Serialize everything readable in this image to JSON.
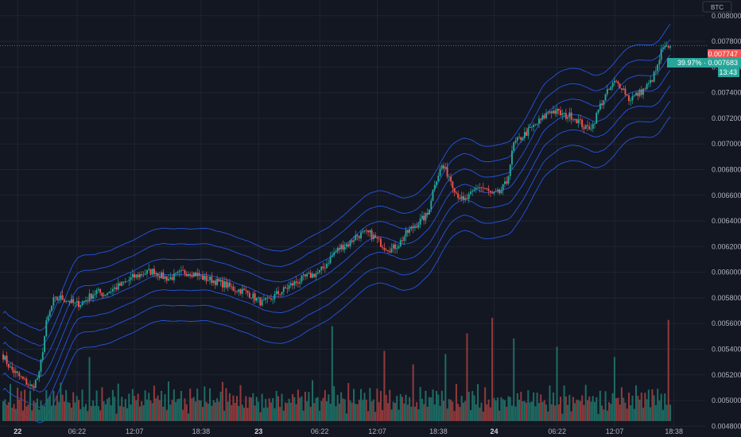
{
  "currency_label": "BTC",
  "chart_data": {
    "type": "candlestick",
    "y_axis": {
      "side": "right",
      "range": [
        0.00479,
        0.00811
      ],
      "ticks": [
        "0.008000",
        "0.007800",
        "0.007600",
        "0.007400",
        "0.007200",
        "0.007000",
        "0.006800",
        "0.006600",
        "0.006400",
        "0.006200",
        "0.006000",
        "0.005800",
        "0.005600",
        "0.005400",
        "0.005200",
        "0.005000",
        "0.004800"
      ]
    },
    "x_axis": {
      "ticks": [
        {
          "label": "22",
          "bold": true,
          "bar": 1
        },
        {
          "label": "06:22",
          "bold": false,
          "bar": 34
        },
        {
          "label": "12:07",
          "bold": false,
          "bar": 66
        },
        {
          "label": "18:38",
          "bold": false,
          "bar": 103
        },
        {
          "label": "23",
          "bold": true,
          "bar": 135
        },
        {
          "label": "06:22",
          "bold": false,
          "bar": 169
        },
        {
          "label": "12:07",
          "bold": false,
          "bar": 201
        },
        {
          "label": "18:38",
          "bold": false,
          "bar": 235
        },
        {
          "label": "24",
          "bold": true,
          "bar": 266
        },
        {
          "label": "06:22",
          "bold": false,
          "bar": 301
        },
        {
          "label": "12:07",
          "bold": false,
          "bar": 333
        },
        {
          "label": "18:38",
          "bold": false,
          "bar": 366
        }
      ]
    },
    "price_anchors": [
      [
        0,
        0.00535
      ],
      [
        4,
        0.00525
      ],
      [
        8,
        0.0052
      ],
      [
        12,
        0.00515
      ],
      [
        16,
        0.0051
      ],
      [
        20,
        0.0052
      ],
      [
        24,
        0.0056
      ],
      [
        28,
        0.00578
      ],
      [
        32,
        0.0058
      ],
      [
        36,
        0.00578
      ],
      [
        40,
        0.00575
      ],
      [
        44,
        0.00576
      ],
      [
        48,
        0.00581
      ],
      [
        52,
        0.00585
      ],
      [
        56,
        0.00583
      ],
      [
        60,
        0.00586
      ],
      [
        64,
        0.00589
      ],
      [
        68,
        0.00592
      ],
      [
        72,
        0.00596
      ],
      [
        76,
        0.00598
      ],
      [
        80,
        0.006
      ],
      [
        84,
        0.00601
      ],
      [
        88,
        0.00597
      ],
      [
        92,
        0.00595
      ],
      [
        96,
        0.00597
      ],
      [
        100,
        0.006
      ],
      [
        104,
        0.006
      ],
      [
        108,
        0.00598
      ],
      [
        112,
        0.00595
      ],
      [
        116,
        0.00594
      ],
      [
        120,
        0.00592
      ],
      [
        124,
        0.0059
      ],
      [
        128,
        0.00587
      ],
      [
        132,
        0.00586
      ],
      [
        136,
        0.00584
      ],
      [
        140,
        0.0058
      ],
      [
        144,
        0.00576
      ],
      [
        148,
        0.00578
      ],
      [
        152,
        0.00583
      ],
      [
        156,
        0.00586
      ],
      [
        160,
        0.0059
      ],
      [
        164,
        0.00593
      ],
      [
        168,
        0.00596
      ],
      [
        172,
        0.00598
      ],
      [
        176,
        0.006
      ],
      [
        180,
        0.00607
      ],
      [
        184,
        0.00615
      ],
      [
        188,
        0.0062
      ],
      [
        192,
        0.00622
      ],
      [
        196,
        0.00628
      ],
      [
        200,
        0.0063
      ],
      [
        204,
        0.0063
      ],
      [
        208,
        0.00625
      ],
      [
        212,
        0.0062
      ],
      [
        216,
        0.00618
      ],
      [
        220,
        0.00622
      ],
      [
        224,
        0.0063
      ],
      [
        228,
        0.00635
      ],
      [
        232,
        0.0064
      ],
      [
        236,
        0.00645
      ],
      [
        240,
        0.0067
      ],
      [
        244,
        0.00683
      ],
      [
        248,
        0.00675
      ],
      [
        252,
        0.00662
      ],
      [
        256,
        0.00655
      ],
      [
        260,
        0.0066
      ],
      [
        264,
        0.00667
      ],
      [
        268,
        0.00665
      ],
      [
        272,
        0.0066
      ],
      [
        276,
        0.00662
      ],
      [
        280,
        0.0067
      ],
      [
        284,
        0.007
      ],
      [
        288,
        0.00705
      ],
      [
        292,
        0.0071
      ],
      [
        296,
        0.00715
      ],
      [
        300,
        0.0072
      ],
      [
        304,
        0.00726
      ],
      [
        308,
        0.00725
      ],
      [
        312,
        0.00722
      ],
      [
        316,
        0.00722
      ],
      [
        320,
        0.00718
      ],
      [
        324,
        0.00712
      ],
      [
        328,
        0.00715
      ],
      [
        332,
        0.0073
      ],
      [
        336,
        0.0074
      ],
      [
        340,
        0.00748
      ],
      [
        344,
        0.00745
      ],
      [
        348,
        0.00735
      ],
      [
        352,
        0.00738
      ],
      [
        356,
        0.00742
      ],
      [
        360,
        0.00748
      ],
      [
        364,
        0.0076
      ],
      [
        366,
        0.00772
      ],
      [
        368,
        0.00775
      ],
      [
        371,
        0.00772
      ]
    ],
    "bollinger_bands": {
      "count": 7,
      "offsets_from_median": [
        0.00036,
        0.00024,
        0.00012,
        0,
        -0.00012,
        -0.00024,
        -0.00036
      ],
      "color": "#2962ff"
    },
    "volume_pattern": [
      0.3,
      0.55,
      0.4,
      0.2,
      0.7,
      0.35,
      0.45,
      0.25,
      0.6,
      0.3,
      0.5,
      0.2,
      0.8,
      0.4,
      0.3,
      0.65,
      0.25,
      0.45,
      0.35,
      0.55
    ],
    "volume_spikes": [
      {
        "bar": 48,
        "height": 0.62
      },
      {
        "bar": 122,
        "height": 0.38
      },
      {
        "bar": 183,
        "height": 0.92
      },
      {
        "bar": 212,
        "height": 0.68
      },
      {
        "bar": 228,
        "height": 0.55
      },
      {
        "bar": 246,
        "height": 0.65
      },
      {
        "bar": 258,
        "height": 0.85
      },
      {
        "bar": 272,
        "height": 1.0
      },
      {
        "bar": 284,
        "height": 0.8
      },
      {
        "bar": 308,
        "height": 0.72
      },
      {
        "bar": 340,
        "height": 0.62
      },
      {
        "bar": 370,
        "height": 0.98
      }
    ],
    "last_close": 0.00776,
    "current_price_line": 0.007766,
    "labels": {
      "close_tag": "0.007747",
      "change_tag": "39.97% · 0.007683",
      "countdown_tag": "13:43"
    },
    "colors": {
      "up": "#26a69a",
      "down": "#ef5350",
      "volume_up": "#1e6b63",
      "volume_down": "#8f3a3c",
      "grid": "#1f2431",
      "price_line": "#26a69a",
      "close_tag_bg": "#ef5350",
      "change_tag_bg": "#26a69a"
    },
    "bar_count": 372
  }
}
